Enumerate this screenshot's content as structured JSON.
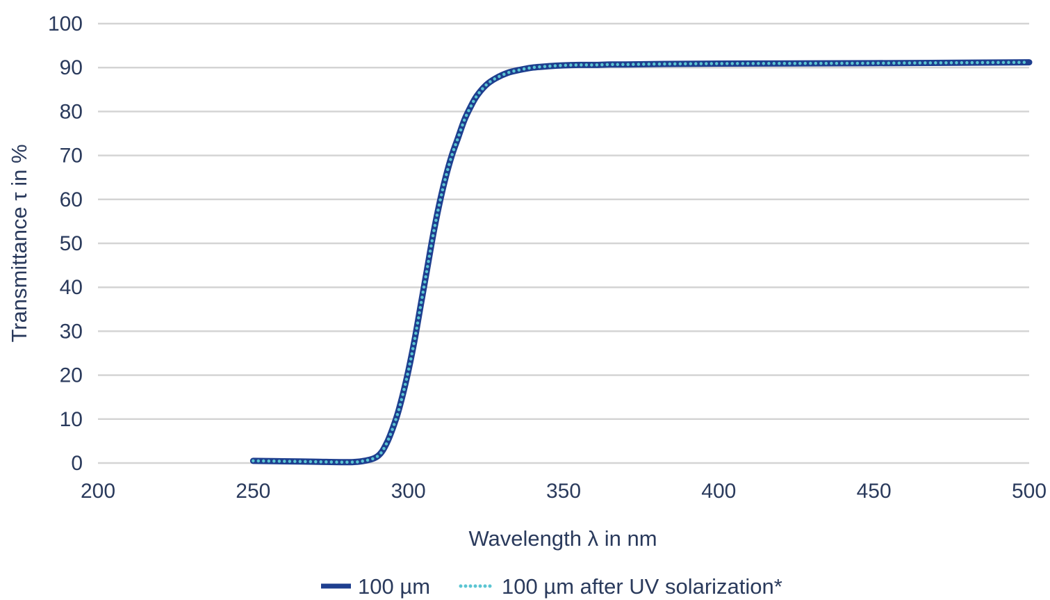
{
  "chart_data": {
    "type": "line",
    "xlabel": "Wavelength λ in nm",
    "ylabel": "Transmittance τ in %",
    "xlim": [
      200,
      500
    ],
    "ylim": [
      0,
      100
    ],
    "x_ticks": [
      "200",
      "250",
      "300",
      "350",
      "400",
      "450",
      "500"
    ],
    "y_ticks": [
      "0",
      "10",
      "20",
      "30",
      "40",
      "50",
      "60",
      "70",
      "80",
      "90",
      "100"
    ],
    "grid": true,
    "legend_position": "bottom",
    "series": [
      {
        "name": "100 µm",
        "style": "solid",
        "color": "#1e3f8f",
        "x": [
          250,
          260,
          270,
          280,
          285,
          290,
          293,
          296,
          298,
          300,
          302,
          304,
          306,
          308,
          310,
          312,
          314,
          316,
          318,
          320,
          322,
          325,
          328,
          332,
          336,
          340,
          345,
          350,
          355,
          360,
          365,
          370,
          380,
          400,
          450,
          500
        ],
        "y": [
          0.5,
          0.4,
          0.3,
          0.2,
          0.4,
          1.5,
          4.5,
          10,
          15,
          21,
          28,
          36,
          44,
          52,
          59,
          65,
          70,
          74,
          78,
          81,
          83.5,
          86,
          87.5,
          88.8,
          89.5,
          90,
          90.3,
          90.5,
          90.6,
          90.6,
          90.7,
          90.7,
          90.8,
          90.9,
          91,
          91.2
        ]
      },
      {
        "name": "100 µm after UV solarization*",
        "style": "dotted",
        "color": "#5bc5d2",
        "x": [
          250,
          260,
          270,
          280,
          285,
          290,
          293,
          296,
          298,
          300,
          302,
          304,
          306,
          308,
          310,
          312,
          314,
          316,
          318,
          320,
          322,
          325,
          328,
          332,
          336,
          340,
          345,
          350,
          355,
          360,
          365,
          370,
          380,
          400,
          450,
          500
        ],
        "y": [
          0.5,
          0.4,
          0.3,
          0.2,
          0.4,
          1.5,
          4.5,
          10,
          15,
          21,
          28,
          36,
          44,
          52,
          59,
          65,
          70,
          74,
          78,
          81,
          83.5,
          86,
          87.5,
          88.8,
          89.5,
          90,
          90.3,
          90.5,
          90.6,
          90.6,
          90.7,
          90.7,
          90.8,
          90.9,
          91,
          91.2
        ]
      }
    ]
  }
}
